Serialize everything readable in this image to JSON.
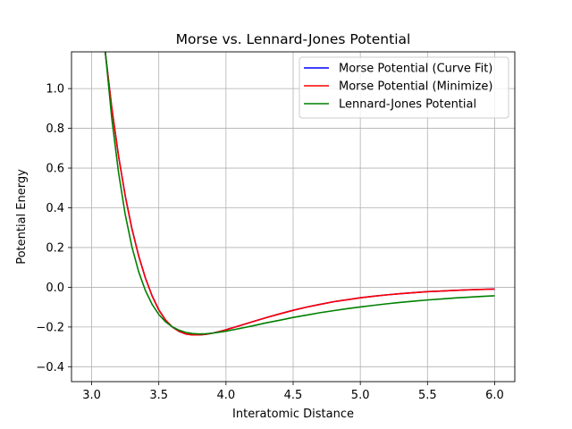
{
  "chart_data": {
    "type": "line",
    "title": "Morse vs. Lennard-Jones Potential",
    "xlabel": "Interatomic Distance",
    "ylabel": "Potential Energy",
    "xlim": [
      2.85,
      6.15
    ],
    "ylim": [
      -0.475,
      1.185
    ],
    "x_ticks": [
      3.0,
      3.5,
      4.0,
      4.5,
      5.0,
      5.5,
      6.0
    ],
    "x_tick_labels": [
      "3.0",
      "3.5",
      "4.0",
      "4.5",
      "5.0",
      "5.5",
      "6.0"
    ],
    "y_ticks": [
      -0.4,
      -0.2,
      0.0,
      0.2,
      0.4,
      0.6,
      0.8,
      1.0
    ],
    "y_tick_labels": [
      "−0.4",
      "−0.2",
      "0.0",
      "0.2",
      "0.4",
      "0.6",
      "0.8",
      "1.0"
    ],
    "grid": true,
    "legend_position": "top-right",
    "series": [
      {
        "name": "Morse Potential (Curve Fit)",
        "color": "#0000ff",
        "x": [
          3.1,
          3.15,
          3.2,
          3.25,
          3.3,
          3.35,
          3.4,
          3.45,
          3.5,
          3.55,
          3.6,
          3.65,
          3.7,
          3.75,
          3.8,
          3.85,
          3.9,
          3.95,
          4.0,
          4.1,
          4.2,
          4.3,
          4.4,
          4.5,
          4.6,
          4.7,
          4.8,
          4.9,
          5.0,
          5.1,
          5.2,
          5.3,
          5.4,
          5.5,
          5.6,
          5.7,
          5.8,
          5.9,
          6.0
        ],
        "y": [
          1.191,
          0.902,
          0.661,
          0.46,
          0.294,
          0.158,
          0.047,
          -0.043,
          -0.114,
          -0.165,
          -0.2,
          -0.222,
          -0.235,
          -0.24,
          -0.24,
          -0.237,
          -0.231,
          -0.223,
          -0.214,
          -0.194,
          -0.173,
          -0.153,
          -0.134,
          -0.116,
          -0.1,
          -0.086,
          -0.073,
          -0.063,
          -0.053,
          -0.045,
          -0.038,
          -0.032,
          -0.027,
          -0.022,
          -0.019,
          -0.016,
          -0.013,
          -0.011,
          -0.009
        ]
      },
      {
        "name": "Morse Potential (Minimize)",
        "color": "#ff0000",
        "x": [
          3.1,
          3.15,
          3.2,
          3.25,
          3.3,
          3.35,
          3.4,
          3.45,
          3.5,
          3.55,
          3.6,
          3.65,
          3.7,
          3.75,
          3.8,
          3.85,
          3.9,
          3.95,
          4.0,
          4.1,
          4.2,
          4.3,
          4.4,
          4.5,
          4.6,
          4.7,
          4.8,
          4.9,
          5.0,
          5.1,
          5.2,
          5.3,
          5.4,
          5.5,
          5.6,
          5.7,
          5.8,
          5.9,
          6.0
        ],
        "y": [
          1.191,
          0.902,
          0.661,
          0.46,
          0.294,
          0.158,
          0.047,
          -0.043,
          -0.114,
          -0.165,
          -0.2,
          -0.222,
          -0.235,
          -0.24,
          -0.24,
          -0.237,
          -0.231,
          -0.223,
          -0.214,
          -0.194,
          -0.173,
          -0.153,
          -0.134,
          -0.116,
          -0.1,
          -0.086,
          -0.073,
          -0.063,
          -0.053,
          -0.045,
          -0.038,
          -0.032,
          -0.027,
          -0.022,
          -0.019,
          -0.016,
          -0.013,
          -0.011,
          -0.009
        ]
      },
      {
        "name": "Lennard-Jones Potential",
        "color": "#008000",
        "x": [
          3.1,
          3.15,
          3.2,
          3.25,
          3.3,
          3.35,
          3.4,
          3.45,
          3.5,
          3.55,
          3.6,
          3.65,
          3.7,
          3.75,
          3.8,
          3.85,
          3.9,
          3.95,
          4.0,
          4.1,
          4.2,
          4.3,
          4.4,
          4.5,
          4.6,
          4.7,
          4.8,
          4.9,
          5.0,
          5.1,
          5.2,
          5.3,
          5.4,
          5.5,
          5.6,
          5.7,
          5.8,
          5.9,
          6.0
        ],
        "y": [
          1.196,
          0.849,
          0.578,
          0.366,
          0.203,
          0.078,
          -0.016,
          -0.086,
          -0.137,
          -0.174,
          -0.199,
          -0.216,
          -0.227,
          -0.233,
          -0.235,
          -0.234,
          -0.231,
          -0.226,
          -0.221,
          -0.208,
          -0.194,
          -0.179,
          -0.166,
          -0.152,
          -0.14,
          -0.128,
          -0.118,
          -0.108,
          -0.099,
          -0.091,
          -0.083,
          -0.076,
          -0.07,
          -0.064,
          -0.059,
          -0.054,
          -0.05,
          -0.046,
          -0.043
        ]
      }
    ]
  }
}
